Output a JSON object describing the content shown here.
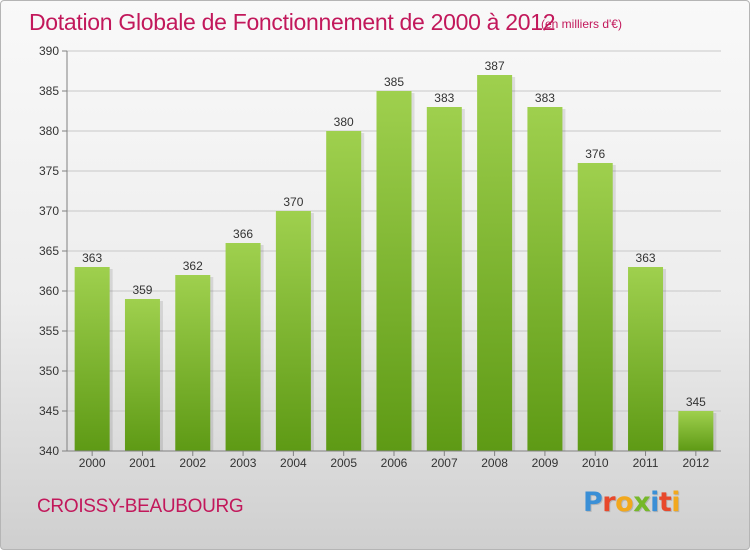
{
  "header": {
    "title": "Dotation Globale de Fonctionnement de 2000 à 2012",
    "subtitle": "(en milliers d'€)"
  },
  "footer": {
    "commune": "CROISSY-BEAUBOURG",
    "logo_text": "Proxiti",
    "logo_letters": [
      {
        "char": "P",
        "color": "#3a8fd6"
      },
      {
        "char": "r",
        "color": "#e8492c"
      },
      {
        "char": "o",
        "color": "#f2a81d"
      },
      {
        "char": "x",
        "color": "#76b82a"
      },
      {
        "char": "i",
        "color": "#3a8fd6"
      },
      {
        "char": "t",
        "color": "#e8492c"
      },
      {
        "char": "i",
        "color": "#f2a81d"
      }
    ]
  },
  "colors": {
    "accent": "#c2185b",
    "bar_top": "#9fd04e",
    "bar_bottom": "#5e9a15",
    "grid": "#c8c8c8",
    "axis": "#808080"
  },
  "chart_data": {
    "type": "bar",
    "title": "Dotation Globale de Fonctionnement de 2000 à 2012",
    "subtitle": "(en milliers d'€)",
    "categories": [
      "2000",
      "2001",
      "2002",
      "2003",
      "2004",
      "2005",
      "2006",
      "2007",
      "2008",
      "2009",
      "2010",
      "2011",
      "2012"
    ],
    "values": [
      363,
      359,
      362,
      366,
      370,
      380,
      385,
      383,
      387,
      383,
      376,
      363,
      345
    ],
    "value_labels": [
      "363",
      "359",
      "362",
      "366",
      "370",
      "380",
      "385",
      "383",
      "387",
      "383",
      "376",
      "363",
      "345"
    ],
    "yticks": [
      "340",
      "345",
      "350",
      "355",
      "360",
      "365",
      "370",
      "375",
      "380",
      "385",
      "390"
    ],
    "ylim": [
      340,
      390
    ],
    "grid": true,
    "legend": "none"
  }
}
